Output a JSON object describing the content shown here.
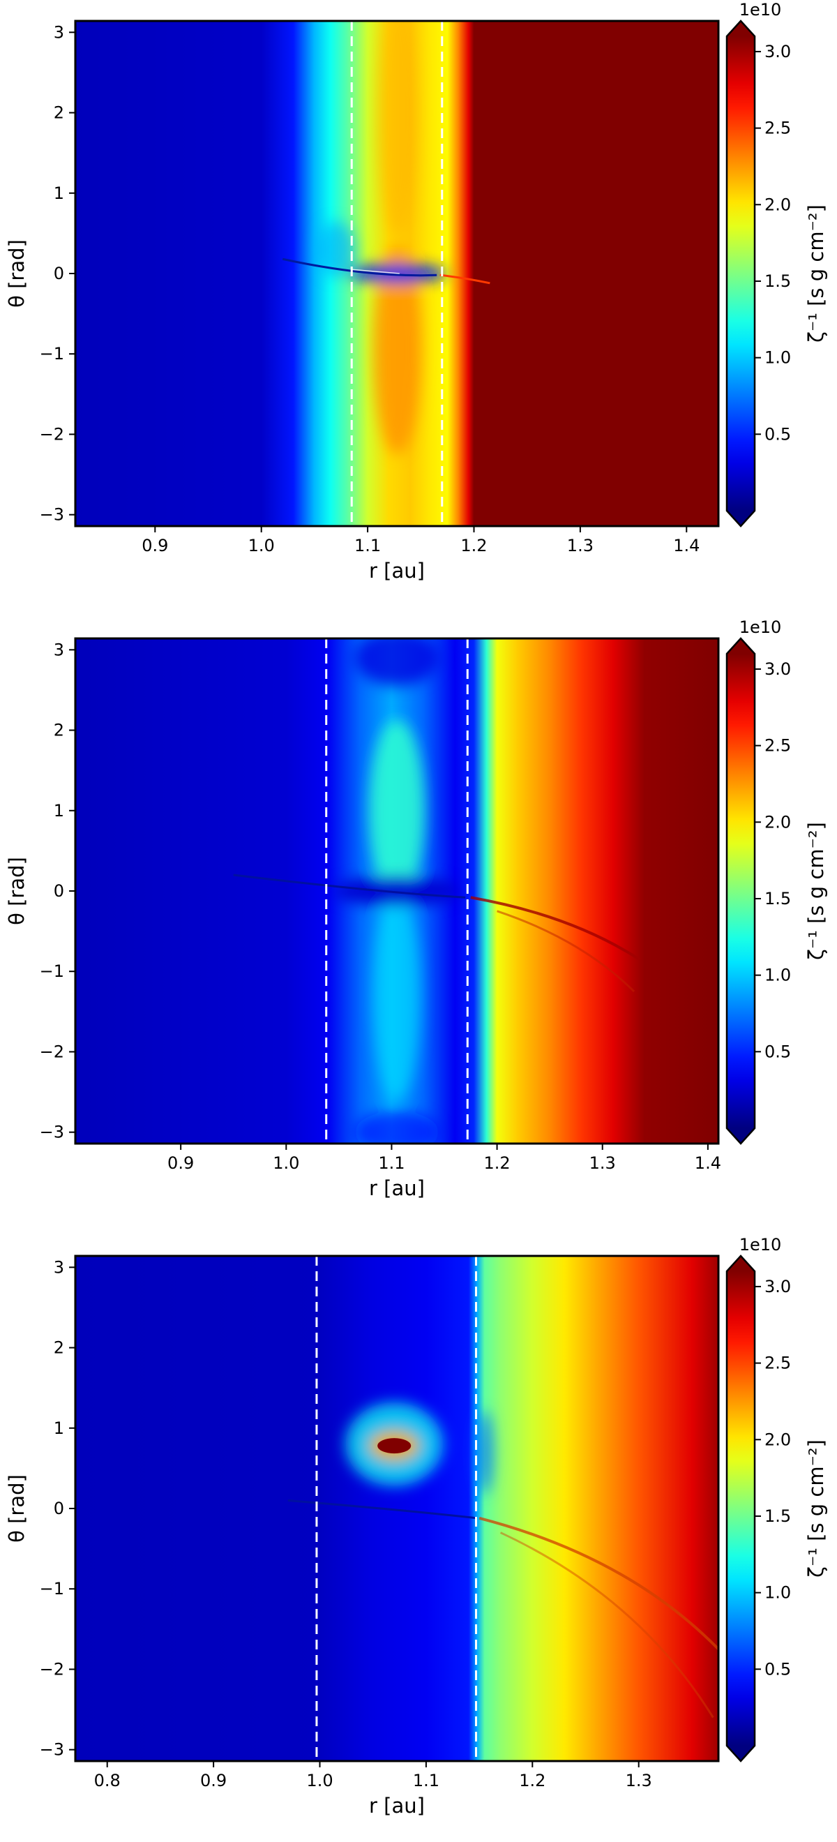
{
  "chart_data": [
    {
      "type": "heatmap",
      "xlabel": "r [au]",
      "ylabel": "θ [rad]",
      "xlim": [
        0.825,
        1.43
      ],
      "ylim": [
        -3.1416,
        3.1416
      ],
      "x_ticks": [
        0.9,
        1.0,
        1.1,
        1.2,
        1.3,
        1.4
      ],
      "y_ticks": [
        -3,
        -2,
        -1,
        0,
        1,
        2,
        3
      ],
      "dashed_lines_r": [
        1.085,
        1.17
      ],
      "colorbar": {
        "label": "ζ⁻¹ [s g cm⁻²]",
        "multiplier": "1e10",
        "ticks": [
          0.5,
          1.0,
          1.5,
          2.0,
          2.5,
          3.0
        ],
        "range": [
          0.0,
          3.1
        ],
        "extend": "both",
        "colormap": "jet"
      },
      "radial_profile": {
        "r": [
          0.825,
          1.0,
          1.03,
          1.05,
          1.065,
          1.08,
          1.09,
          1.1,
          1.12,
          1.14,
          1.16,
          1.175,
          1.185,
          1.195,
          1.2,
          1.43
        ],
        "value": [
          0.18,
          0.22,
          0.45,
          0.95,
          1.2,
          1.42,
          1.6,
          1.8,
          2.05,
          2.1,
          2.0,
          1.95,
          2.3,
          2.8,
          3.2,
          3.2
        ]
      }
    },
    {
      "type": "heatmap",
      "xlabel": "r [au]",
      "ylabel": "θ [rad]",
      "xlim": [
        0.8,
        1.41
      ],
      "ylim": [
        -3.1416,
        3.1416
      ],
      "x_ticks": [
        0.9,
        1.0,
        1.1,
        1.2,
        1.3,
        1.4
      ],
      "y_ticks": [
        -3,
        -2,
        -1,
        0,
        1,
        2,
        3
      ],
      "dashed_lines_r": [
        1.038,
        1.172
      ],
      "colorbar": {
        "label": "ζ⁻¹ [s g cm⁻²]",
        "multiplier": "1e10",
        "ticks": [
          0.5,
          1.0,
          1.5,
          2.0,
          2.5,
          3.0
        ],
        "range": [
          0.0,
          3.1
        ],
        "extend": "both",
        "colormap": "jet"
      },
      "radial_profile": {
        "r": [
          0.8,
          1.0,
          1.04,
          1.07,
          1.1,
          1.13,
          1.16,
          1.178,
          1.19,
          1.2,
          1.22,
          1.25,
          1.28,
          1.31,
          1.34,
          1.41
        ],
        "value": [
          0.18,
          0.25,
          0.35,
          0.7,
          0.9,
          0.7,
          0.35,
          0.5,
          1.3,
          1.9,
          2.1,
          2.3,
          2.55,
          2.8,
          3.05,
          3.2
        ]
      }
    },
    {
      "type": "heatmap",
      "xlabel": "r [au]",
      "ylabel": "θ [rad]",
      "xlim": [
        0.77,
        1.375
      ],
      "ylim": [
        -3.1416,
        3.1416
      ],
      "x_ticks": [
        0.8,
        0.9,
        1.0,
        1.1,
        1.2,
        1.3
      ],
      "y_ticks": [
        -3,
        -2,
        -1,
        0,
        1,
        2,
        3
      ],
      "dashed_lines_r": [
        0.997,
        1.147
      ],
      "colorbar": {
        "label": "ζ⁻¹ [s g cm⁻²]",
        "multiplier": "1e10",
        "ticks": [
          0.5,
          1.0,
          1.5,
          2.0,
          2.5,
          3.0
        ],
        "range": [
          0.0,
          3.1
        ],
        "extend": "both",
        "colormap": "jet"
      },
      "radial_profile": {
        "r": [
          0.77,
          1.0,
          1.05,
          1.1,
          1.14,
          1.148,
          1.155,
          1.17,
          1.2,
          1.23,
          1.26,
          1.3,
          1.35,
          1.375
        ],
        "value": [
          0.18,
          0.2,
          0.3,
          0.35,
          0.45,
          0.9,
          1.45,
          1.6,
          1.8,
          2.0,
          2.2,
          2.45,
          2.8,
          3.0
        ]
      }
    }
  ]
}
